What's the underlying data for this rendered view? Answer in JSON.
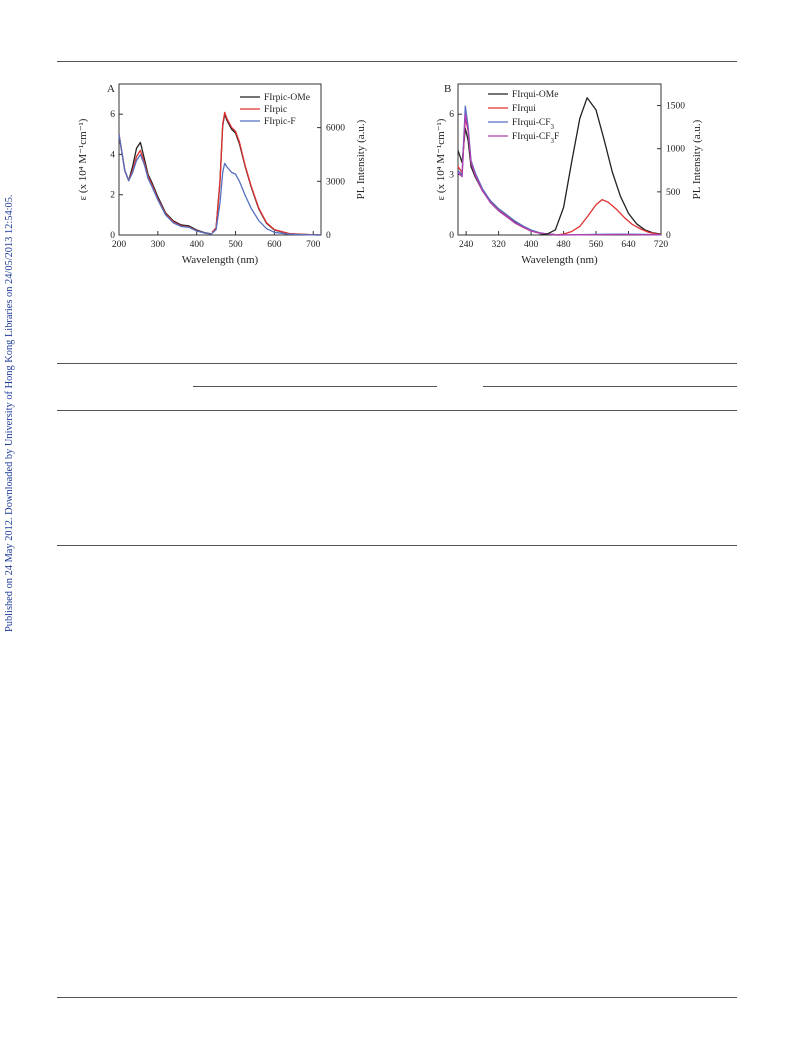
{
  "side_note": "Published on 24 May 2012. Downloaded by University of Hong Kong Libraries on 24/05/2013 12:54:05.",
  "chart_data": [
    {
      "type": "line",
      "panel_label": "A",
      "xlabel": "Wavelength (nm)",
      "ylabel_left": "ε (x 10⁴ M⁻¹cm⁻¹)",
      "ylabel_right": "PL Intensity (a.u.)",
      "xlim": [
        200,
        720
      ],
      "ylim_left": [
        0,
        7.5
      ],
      "ylim_right": [
        0,
        8437
      ],
      "xticks": [
        200,
        300,
        400,
        500,
        600,
        700
      ],
      "yticks_left": [
        0,
        2,
        4,
        6
      ],
      "yticks_right": [
        0,
        3000,
        6000
      ],
      "legend_position": "top-right",
      "series": [
        {
          "name": "FIrpic-OMe",
          "color": "#222222",
          "axis": "left",
          "x": [
            200,
            215,
            225,
            235,
            245,
            255,
            265,
            275,
            285,
            300,
            320,
            340,
            360,
            380,
            400,
            420,
            440
          ],
          "y": [
            5.0,
            3.2,
            2.7,
            3.4,
            4.3,
            4.6,
            3.8,
            3.0,
            2.6,
            1.9,
            1.1,
            0.7,
            0.5,
            0.45,
            0.25,
            0.12,
            0.05
          ]
        },
        {
          "name": "FIrpic",
          "color": "#e03030",
          "axis": "left",
          "x": [
            200,
            215,
            225,
            235,
            245,
            255,
            265,
            275,
            285,
            300,
            320,
            340,
            360,
            380,
            400,
            420,
            440
          ],
          "y": [
            5.0,
            3.2,
            2.7,
            3.2,
            3.9,
            4.2,
            3.6,
            2.9,
            2.5,
            1.8,
            1.05,
            0.65,
            0.45,
            0.4,
            0.22,
            0.1,
            0.04
          ]
        },
        {
          "name": "FIrpic-F",
          "color": "#5570c0",
          "axis": "left",
          "x": [
            200,
            215,
            225,
            235,
            245,
            255,
            265,
            275,
            285,
            300,
            320,
            340,
            360,
            380,
            400,
            420,
            440
          ],
          "y": [
            5.0,
            3.2,
            2.7,
            3.1,
            3.7,
            4.0,
            3.5,
            2.8,
            2.4,
            1.75,
            1.0,
            0.6,
            0.42,
            0.38,
            0.2,
            0.1,
            0.04
          ]
        },
        {
          "name": "FIrpic-OMe PL",
          "color": "#222222",
          "axis": "right",
          "x": [
            440,
            450,
            460,
            467,
            472,
            478,
            490,
            500,
            510,
            525,
            540,
            560,
            580,
            600,
            640,
            700,
            720
          ],
          "y": [
            150,
            400,
            3000,
            6100,
            6750,
            6400,
            5900,
            5700,
            5100,
            3800,
            2700,
            1450,
            650,
            280,
            60,
            10,
            0
          ]
        },
        {
          "name": "FIrpic PL",
          "color": "#e03030",
          "axis": "right",
          "x": [
            440,
            450,
            460,
            467,
            472,
            478,
            490,
            500,
            510,
            525,
            540,
            560,
            580,
            600,
            640,
            700,
            720
          ],
          "y": [
            150,
            400,
            3000,
            6200,
            6850,
            6500,
            6000,
            5800,
            5200,
            3850,
            2750,
            1500,
            680,
            300,
            70,
            10,
            0
          ]
        },
        {
          "name": "FIrpic-F PL",
          "color": "#5570c0",
          "axis": "right",
          "x": [
            440,
            450,
            460,
            467,
            472,
            478,
            490,
            500,
            510,
            525,
            540,
            560,
            580,
            600,
            640,
            700,
            720
          ],
          "y": [
            100,
            300,
            1800,
            3500,
            4000,
            3800,
            3500,
            3400,
            3000,
            2200,
            1500,
            800,
            350,
            150,
            40,
            5,
            0
          ]
        }
      ]
    },
    {
      "type": "line",
      "panel_label": "B",
      "xlabel": "Wavelength (nm)",
      "ylabel_left": "ε (x 10⁴ M⁻¹cm⁻¹)",
      "ylabel_right": "PL Intensity (a.u.)",
      "xlim": [
        220,
        720
      ],
      "ylim_left": [
        0,
        7.5
      ],
      "ylim_right": [
        0,
        1750
      ],
      "xticks": [
        240,
        320,
        400,
        480,
        560,
        640,
        720
      ],
      "yticks_left": [
        0,
        3,
        6
      ],
      "yticks_right": [
        0,
        500,
        1000,
        1500
      ],
      "legend_position": "top-left",
      "series": [
        {
          "name": "FIrqui-OMe",
          "color": "#222222",
          "axis": "left",
          "x": [
            220,
            230,
            238,
            245,
            252,
            262,
            280,
            300,
            320,
            340,
            360,
            380,
            400,
            420,
            440,
            460
          ],
          "y": [
            4.2,
            3.6,
            5.3,
            4.7,
            3.4,
            2.9,
            2.2,
            1.7,
            1.3,
            1.0,
            0.65,
            0.4,
            0.22,
            0.1,
            0.05,
            0.02
          ]
        },
        {
          "name": "FIrqui",
          "color": "#e03030",
          "axis": "left",
          "x": [
            220,
            230,
            238,
            245,
            252,
            262,
            280,
            300,
            320,
            340,
            360,
            380,
            400,
            420,
            440,
            460
          ],
          "y": [
            3.4,
            3.1,
            5.8,
            5.2,
            3.6,
            3.0,
            2.2,
            1.65,
            1.25,
            0.95,
            0.6,
            0.38,
            0.2,
            0.1,
            0.05,
            0.02
          ]
        },
        {
          "name": "FIrqui-CF3",
          "color": "#5570c0",
          "axis": "left",
          "x": [
            220,
            230,
            238,
            245,
            252,
            262,
            280,
            300,
            320,
            340,
            360,
            380,
            400,
            420,
            440,
            460
          ],
          "y": [
            3.2,
            3.0,
            6.4,
            5.4,
            3.7,
            3.1,
            2.3,
            1.7,
            1.3,
            1.0,
            0.7,
            0.45,
            0.25,
            0.12,
            0.05,
            0.02
          ]
        },
        {
          "name": "FIrqui-CF3F",
          "color": "#b040b0",
          "axis": "left",
          "x": [
            220,
            230,
            238,
            245,
            252,
            262,
            280,
            300,
            320,
            340,
            360,
            380,
            400,
            420,
            440,
            460
          ],
          "y": [
            3.1,
            2.9,
            6.0,
            5.2,
            3.6,
            3.0,
            2.2,
            1.6,
            1.2,
            0.9,
            0.6,
            0.4,
            0.2,
            0.1,
            0.05,
            0.02
          ]
        },
        {
          "name": "FIrqui-OMe PL",
          "color": "#222222",
          "axis": "right",
          "x": [
            420,
            440,
            460,
            480,
            500,
            520,
            538,
            560,
            580,
            600,
            620,
            640,
            660,
            680,
            700,
            720
          ],
          "y": [
            0,
            10,
            60,
            320,
            850,
            1350,
            1590,
            1450,
            1100,
            730,
            450,
            250,
            130,
            60,
            25,
            10
          ]
        },
        {
          "name": "FIrqui PL",
          "color": "#e03030",
          "axis": "right",
          "x": [
            460,
            480,
            500,
            520,
            540,
            560,
            575,
            590,
            610,
            630,
            650,
            670,
            690,
            720
          ],
          "y": [
            0,
            10,
            40,
            100,
            220,
            350,
            410,
            380,
            300,
            200,
            120,
            70,
            30,
            5
          ]
        },
        {
          "name": "FIrqui-CF3 PL",
          "color": "#5570c0",
          "axis": "right",
          "x": [
            460,
            520,
            580,
            620,
            660,
            720
          ],
          "y": [
            0,
            3,
            8,
            10,
            8,
            3
          ]
        },
        {
          "name": "FIrqui-CF3F PL",
          "color": "#b040b0",
          "axis": "right",
          "x": [
            460,
            520,
            580,
            620,
            660,
            720
          ],
          "y": [
            0,
            2,
            5,
            6,
            5,
            2
          ]
        }
      ],
      "legend_entries": [
        {
          "label": "FIrqui-OMe",
          "color": "#222222",
          "parts": [
            [
              "FIrqui-OMe",
              ""
            ]
          ]
        },
        {
          "label": "FIrqui",
          "color": "#e03030",
          "parts": [
            [
              "FIrqui",
              ""
            ]
          ]
        },
        {
          "label": "FIrqui-CF3",
          "color": "#5570c0",
          "parts": [
            [
              "FIrqui-CF",
              ""
            ],
            [
              "3",
              "sub"
            ]
          ]
        },
        {
          "label": "FIrqui-CF3F",
          "color": "#b040b0",
          "parts": [
            [
              "FIrqui-CF",
              ""
            ],
            [
              "3",
              "sub"
            ],
            [
              "F",
              ""
            ]
          ]
        }
      ]
    }
  ]
}
